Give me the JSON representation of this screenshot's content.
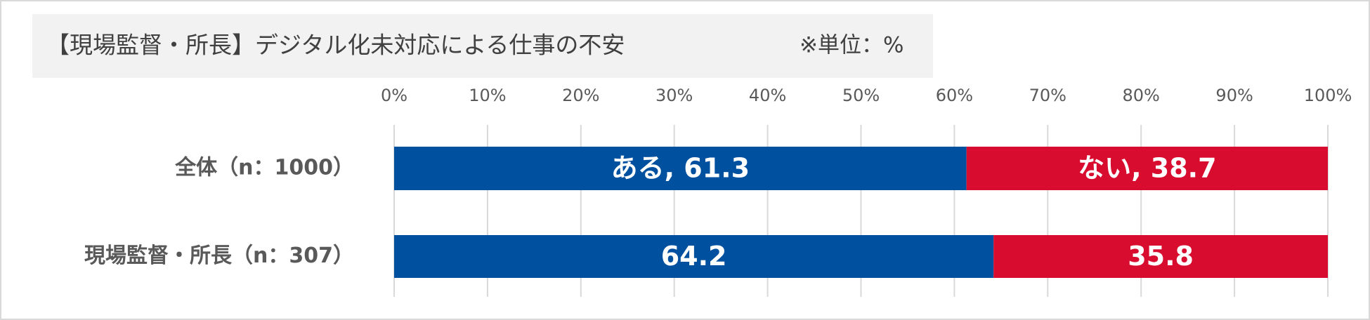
{
  "chart_data": {
    "type": "stacked-bar-horizontal",
    "title": "【現場監督・所長】デジタル化未対応による仕事の不安",
    "subtitle": "※単位：%",
    "categories": [
      "全体（n：1000）",
      "現場監督・所長（n：307）"
    ],
    "series": [
      {
        "name": "ある",
        "color": "#0050a0",
        "values": [
          61.3,
          64.2
        ],
        "value_labels": [
          "ある, 61.3",
          "64.2"
        ]
      },
      {
        "name": "ない",
        "color": "#d80c2f",
        "values": [
          38.7,
          35.8
        ],
        "value_labels": [
          "ない, 38.7",
          "35.8"
        ]
      }
    ],
    "xlim": [
      0,
      100
    ],
    "xticks": [
      {
        "value": 0,
        "label": "0%"
      },
      {
        "value": 10,
        "label": "10%"
      },
      {
        "value": 20,
        "label": "20%"
      },
      {
        "value": 30,
        "label": "30%"
      },
      {
        "value": 40,
        "label": "40%"
      },
      {
        "value": 50,
        "label": "50%"
      },
      {
        "value": 60,
        "label": "60%"
      },
      {
        "value": 70,
        "label": "70%"
      },
      {
        "value": 80,
        "label": "80%"
      },
      {
        "value": 90,
        "label": "90%"
      },
      {
        "value": 100,
        "label": "100%"
      }
    ],
    "grid": true
  }
}
